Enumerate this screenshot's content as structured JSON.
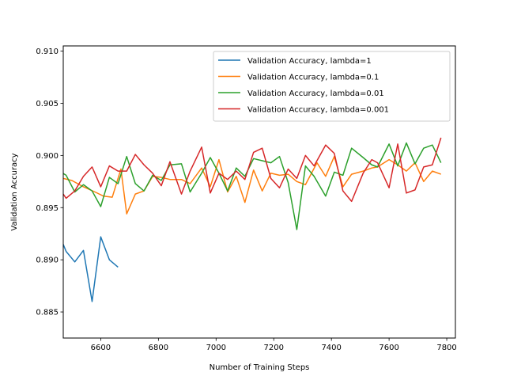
{
  "chart_data": {
    "type": "line",
    "title": "",
    "xlabel": "Number of Training Steps",
    "ylabel": "Validation Accuracy",
    "xlim": [
      6470,
      7830
    ],
    "ylim": [
      0.8825,
      0.9105
    ],
    "xticks": [
      6600,
      6800,
      7000,
      7200,
      7400,
      7600,
      7800
    ],
    "xtick_labels": [
      "6600",
      "6800",
      "7000",
      "7200",
      "7400",
      "7600",
      "7800"
    ],
    "yticks": [
      0.885,
      0.89,
      0.895,
      0.9,
      0.905,
      0.91
    ],
    "ytick_labels": [
      "0.885",
      "0.890",
      "0.895",
      "0.900",
      "0.905",
      "0.910"
    ],
    "grid": false,
    "legend_position": "top-right",
    "series": [
      {
        "name": "Validation Accuracy, lambda=1",
        "color": "#1f77b4",
        "x": [
          6440,
          6480,
          6510,
          6540,
          6570,
          6600,
          6630,
          6660
        ],
        "y": [
          0.8935,
          0.8908,
          0.8898,
          0.8909,
          0.886,
          0.8922,
          0.89,
          0.8893
        ]
      },
      {
        "name": "Validation Accuracy, lambda=0.1",
        "color": "#ff7f0e",
        "x": [
          6440,
          6470,
          6500,
          6540,
          6580,
          6610,
          6640,
          6670,
          6690,
          6720,
          6750,
          6780,
          6810,
          6840,
          6880,
          6910,
          6950,
          6980,
          7010,
          7040,
          7070,
          7100,
          7130,
          7160,
          7190,
          7220,
          7250,
          7280,
          7310,
          7350,
          7380,
          7410,
          7440,
          7470,
          7510,
          7540,
          7560,
          7600,
          7630,
          7660,
          7690,
          7720,
          7750,
          7780
        ],
        "y": [
          0.8975,
          0.8978,
          0.8976,
          0.897,
          0.8965,
          0.8961,
          0.896,
          0.8987,
          0.8944,
          0.8963,
          0.8966,
          0.898,
          0.8979,
          0.8977,
          0.8977,
          0.8973,
          0.8988,
          0.897,
          0.8996,
          0.8965,
          0.898,
          0.8955,
          0.8986,
          0.8966,
          0.8983,
          0.8981,
          0.8982,
          0.8975,
          0.8972,
          0.8993,
          0.898,
          0.8999,
          0.897,
          0.8982,
          0.8985,
          0.8988,
          0.8989,
          0.8996,
          0.8991,
          0.8985,
          0.8993,
          0.8975,
          0.8985,
          0.8982
        ]
      },
      {
        "name": "Validation Accuracy, lambda=0.01",
        "color": "#2ca02c",
        "x": [
          6440,
          6480,
          6510,
          6540,
          6570,
          6600,
          6630,
          6660,
          6690,
          6720,
          6750,
          6780,
          6810,
          6840,
          6880,
          6910,
          6950,
          6980,
          7010,
          7040,
          7070,
          7100,
          7130,
          7160,
          7190,
          7220,
          7250,
          7280,
          7310,
          7340,
          7380,
          7410,
          7440,
          7470,
          7510,
          7540,
          7560,
          7600,
          7630,
          7660,
          7690,
          7720,
          7750,
          7780
        ],
        "y": [
          0.8988,
          0.8981,
          0.8965,
          0.8972,
          0.8966,
          0.8951,
          0.8979,
          0.8973,
          0.8999,
          0.8973,
          0.8966,
          0.8981,
          0.8976,
          0.8991,
          0.8992,
          0.8965,
          0.8983,
          0.8998,
          0.8983,
          0.8966,
          0.8988,
          0.898,
          0.8997,
          0.8995,
          0.8993,
          0.8999,
          0.8974,
          0.8929,
          0.899,
          0.898,
          0.8961,
          0.8984,
          0.8981,
          0.9007,
          0.8998,
          0.8991,
          0.8989,
          0.9011,
          0.899,
          0.9012,
          0.8992,
          0.9007,
          0.901,
          0.8993
        ]
      },
      {
        "name": "Validation Accuracy, lambda=0.001",
        "color": "#d62728",
        "x": [
          6440,
          6480,
          6510,
          6540,
          6570,
          6600,
          6630,
          6660,
          6690,
          6720,
          6750,
          6780,
          6810,
          6840,
          6880,
          6910,
          6950,
          6980,
          7010,
          7040,
          7070,
          7100,
          7130,
          7160,
          7190,
          7220,
          7250,
          7280,
          7310,
          7340,
          7380,
          7410,
          7440,
          7470,
          7510,
          7540,
          7560,
          7600,
          7630,
          7660,
          7690,
          7720,
          7750,
          7780
        ],
        "y": [
          0.8975,
          0.8959,
          0.8966,
          0.898,
          0.8989,
          0.897,
          0.899,
          0.8985,
          0.8985,
          0.9001,
          0.8991,
          0.8983,
          0.8971,
          0.8994,
          0.8963,
          0.8985,
          0.9008,
          0.8964,
          0.8983,
          0.8977,
          0.8985,
          0.8977,
          0.9003,
          0.9007,
          0.8978,
          0.8969,
          0.8987,
          0.8978,
          0.9,
          0.899,
          0.901,
          0.9002,
          0.8966,
          0.8956,
          0.8983,
          0.8996,
          0.8993,
          0.8969,
          0.9011,
          0.8964,
          0.8967,
          0.8989,
          0.8991,
          0.9017
        ]
      }
    ]
  }
}
